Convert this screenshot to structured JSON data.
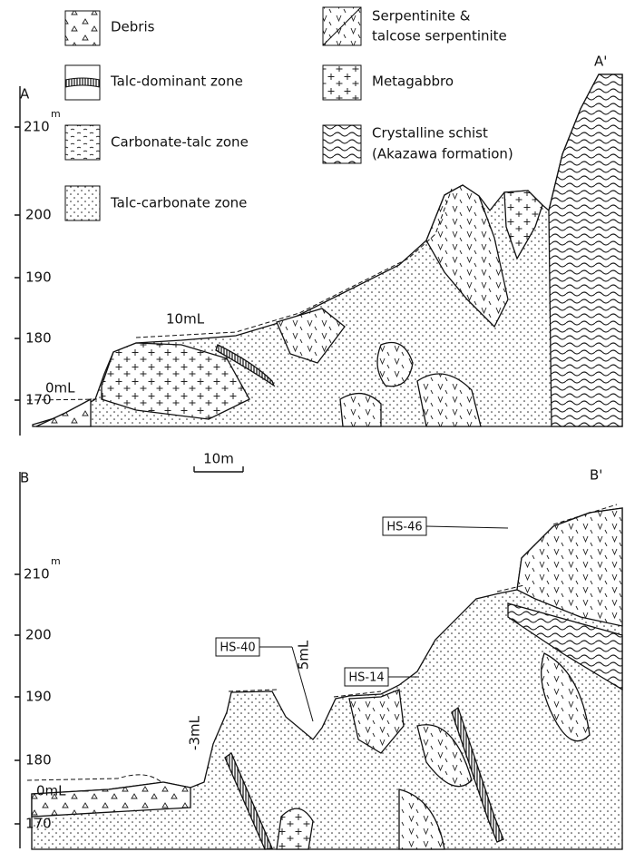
{
  "legend": {
    "items": [
      {
        "lines": [
          "Debris"
        ]
      },
      {
        "lines": [
          "Talc-dominant zone"
        ]
      },
      {
        "lines": [
          "Carbonate-talc zone"
        ]
      },
      {
        "lines": [
          "Talc-carbonate zone"
        ]
      },
      {
        "lines": [
          "Serpentinite &",
          "talcose serpentinite"
        ]
      },
      {
        "lines": [
          "Metagabbro"
        ]
      },
      {
        "lines": [
          "Crystalline schist",
          "(Akazawa formation)"
        ]
      }
    ]
  },
  "sections": [
    {
      "start": "A",
      "end": "A'",
      "unit": "m",
      "ticks": [
        210,
        200,
        190,
        180,
        170
      ],
      "levels": [
        "0mL",
        "10mL"
      ]
    },
    {
      "start": "B",
      "end": "B'",
      "unit": "m",
      "ticks": [
        210,
        200,
        190,
        180,
        170
      ],
      "levels": [
        "0mL",
        "-3mL",
        "5mL"
      ],
      "samples": [
        "HS-46",
        "HS-14",
        "HS-40"
      ]
    }
  ],
  "scale_bar": "10m"
}
